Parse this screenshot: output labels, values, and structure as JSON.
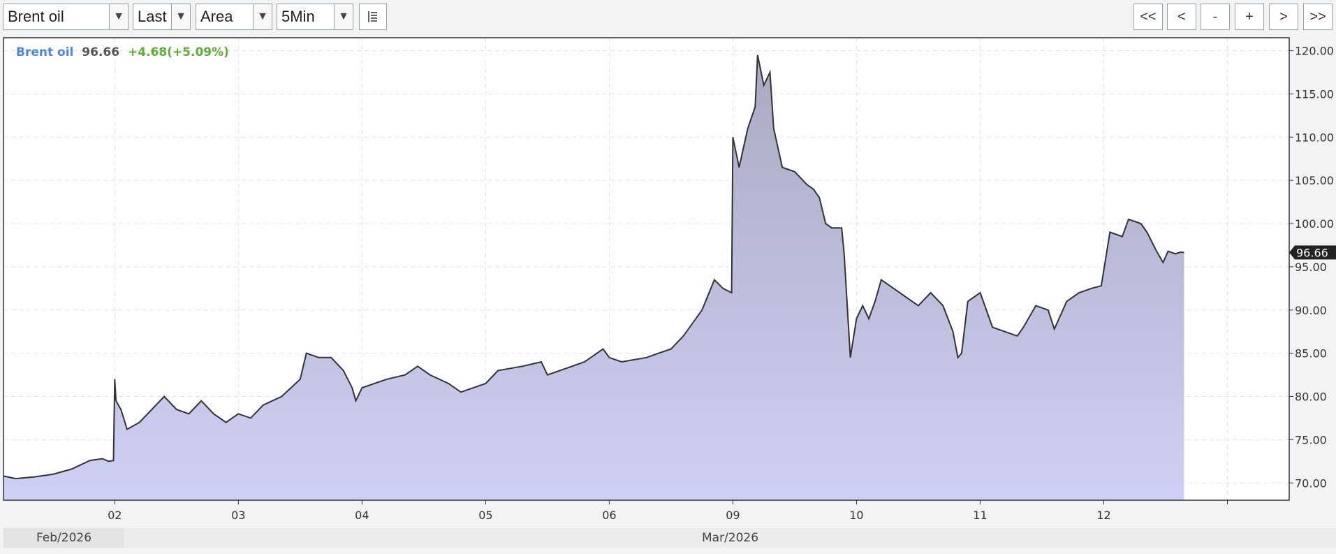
{
  "toolbar": {
    "instrument": "Brent oil",
    "price_type": "Last",
    "chart_style": "Area",
    "interval": "5Min",
    "nav_first": "<<",
    "nav_prev": "<",
    "zoom_out": "-",
    "zoom_in": "+",
    "nav_next": ">",
    "nav_last": ">>"
  },
  "legend": {
    "name": "Brent oil",
    "last": "96.66",
    "change": "+4.68(+5.09%)"
  },
  "date_bar": {
    "left": "Feb/2026",
    "right": "Mar/2026"
  },
  "colors": {
    "line": "#333333",
    "area_top": "#a9aac0",
    "area_bottom": "#cfd0f5",
    "legend_name": "#4a86e8",
    "legend_change": "#5bb02f",
    "price_tag_bg": "#222222"
  },
  "chart_data": {
    "type": "area",
    "title": "",
    "xlabel": "",
    "ylabel": "",
    "ylim": [
      68,
      121.5
    ],
    "y_ticks": [
      70,
      75,
      80,
      85,
      90,
      95,
      100,
      105,
      110,
      115,
      120
    ],
    "y_tick_labels": [
      "70.00",
      "75.00",
      "80.00",
      "85.00",
      "90.00",
      "95.00",
      "100.00",
      "105.00",
      "110.00",
      "115.00",
      "120.00"
    ],
    "x_range": [
      -0.9,
      9.5
    ],
    "x_ticks": [
      0,
      1,
      2,
      3,
      4,
      5,
      6,
      7,
      8,
      9
    ],
    "x_tick_labels": [
      "02",
      "03",
      "04",
      "05",
      "06",
      "09",
      "10",
      "11",
      "12"
    ],
    "x_tick_label_positions": [
      0,
      1,
      2,
      3,
      4,
      5,
      6,
      7,
      8
    ],
    "last_value": 96.66,
    "last_value_label": "96.66",
    "grid": true,
    "series": [
      {
        "values": [
          [
            -0.9,
            70.8
          ],
          [
            -0.8,
            70.5
          ],
          [
            -0.65,
            70.7
          ],
          [
            -0.5,
            71.0
          ],
          [
            -0.35,
            71.6
          ],
          [
            -0.2,
            72.6
          ],
          [
            -0.1,
            72.8
          ],
          [
            -0.05,
            72.5
          ],
          [
            -0.01,
            72.6
          ],
          [
            0.0,
            82.0
          ],
          [
            0.01,
            79.5
          ],
          [
            0.05,
            78.5
          ],
          [
            0.1,
            76.2
          ],
          [
            0.2,
            77.0
          ],
          [
            0.3,
            78.5
          ],
          [
            0.4,
            80.0
          ],
          [
            0.5,
            78.5
          ],
          [
            0.6,
            78.0
          ],
          [
            0.7,
            79.5
          ],
          [
            0.8,
            78.0
          ],
          [
            0.9,
            77.0
          ],
          [
            1.0,
            78.0
          ],
          [
            1.1,
            77.5
          ],
          [
            1.2,
            79.0
          ],
          [
            1.35,
            80.0
          ],
          [
            1.5,
            82.0
          ],
          [
            1.55,
            85.0
          ],
          [
            1.65,
            84.5
          ],
          [
            1.75,
            84.5
          ],
          [
            1.85,
            83.0
          ],
          [
            1.92,
            81.0
          ],
          [
            1.95,
            79.5
          ],
          [
            2.0,
            81.0
          ],
          [
            2.2,
            82.0
          ],
          [
            2.35,
            82.5
          ],
          [
            2.45,
            83.5
          ],
          [
            2.55,
            82.5
          ],
          [
            2.7,
            81.5
          ],
          [
            2.8,
            80.5
          ],
          [
            2.9,
            81.0
          ],
          [
            3.0,
            81.5
          ],
          [
            3.1,
            83.0
          ],
          [
            3.3,
            83.5
          ],
          [
            3.45,
            84.0
          ],
          [
            3.5,
            82.5
          ],
          [
            3.6,
            83.0
          ],
          [
            3.8,
            84.0
          ],
          [
            3.95,
            85.5
          ],
          [
            4.0,
            84.5
          ],
          [
            4.1,
            84.0
          ],
          [
            4.3,
            84.5
          ],
          [
            4.4,
            85.0
          ],
          [
            4.5,
            85.5
          ],
          [
            4.6,
            87.0
          ],
          [
            4.75,
            90.0
          ],
          [
            4.85,
            93.5
          ],
          [
            4.92,
            92.5
          ],
          [
            4.99,
            92.0
          ],
          [
            5.0,
            110.0
          ],
          [
            5.05,
            106.5
          ],
          [
            5.12,
            111.0
          ],
          [
            5.18,
            113.5
          ],
          [
            5.2,
            119.5
          ],
          [
            5.25,
            116.0
          ],
          [
            5.3,
            117.5
          ],
          [
            5.33,
            111.0
          ],
          [
            5.4,
            106.5
          ],
          [
            5.5,
            106.0
          ],
          [
            5.6,
            104.5
          ],
          [
            5.65,
            104.0
          ],
          [
            5.7,
            103.0
          ],
          [
            5.75,
            100.0
          ],
          [
            5.8,
            99.5
          ],
          [
            5.88,
            99.5
          ],
          [
            5.9,
            96.5
          ],
          [
            5.95,
            84.5
          ],
          [
            6.0,
            89.0
          ],
          [
            6.05,
            90.5
          ],
          [
            6.1,
            89.0
          ],
          [
            6.15,
            91.0
          ],
          [
            6.2,
            93.5
          ],
          [
            6.3,
            92.5
          ],
          [
            6.4,
            91.5
          ],
          [
            6.5,
            90.5
          ],
          [
            6.6,
            92.0
          ],
          [
            6.7,
            90.5
          ],
          [
            6.78,
            87.5
          ],
          [
            6.82,
            84.5
          ],
          [
            6.85,
            85.0
          ],
          [
            6.9,
            91.0
          ],
          [
            7.0,
            92.0
          ],
          [
            7.1,
            88.0
          ],
          [
            7.2,
            87.5
          ],
          [
            7.3,
            87.0
          ],
          [
            7.35,
            88.0
          ],
          [
            7.45,
            90.5
          ],
          [
            7.55,
            90.0
          ],
          [
            7.6,
            87.8
          ],
          [
            7.7,
            91.0
          ],
          [
            7.8,
            92.0
          ],
          [
            7.9,
            92.5
          ],
          [
            7.98,
            92.8
          ],
          [
            8.05,
            99.0
          ],
          [
            8.15,
            98.5
          ],
          [
            8.2,
            100.5
          ],
          [
            8.3,
            100.0
          ],
          [
            8.35,
            99.0
          ],
          [
            8.42,
            97.0
          ],
          [
            8.48,
            95.5
          ],
          [
            8.52,
            96.8
          ],
          [
            8.58,
            96.5
          ],
          [
            8.62,
            96.7
          ],
          [
            8.65,
            96.66
          ]
        ]
      }
    ]
  }
}
